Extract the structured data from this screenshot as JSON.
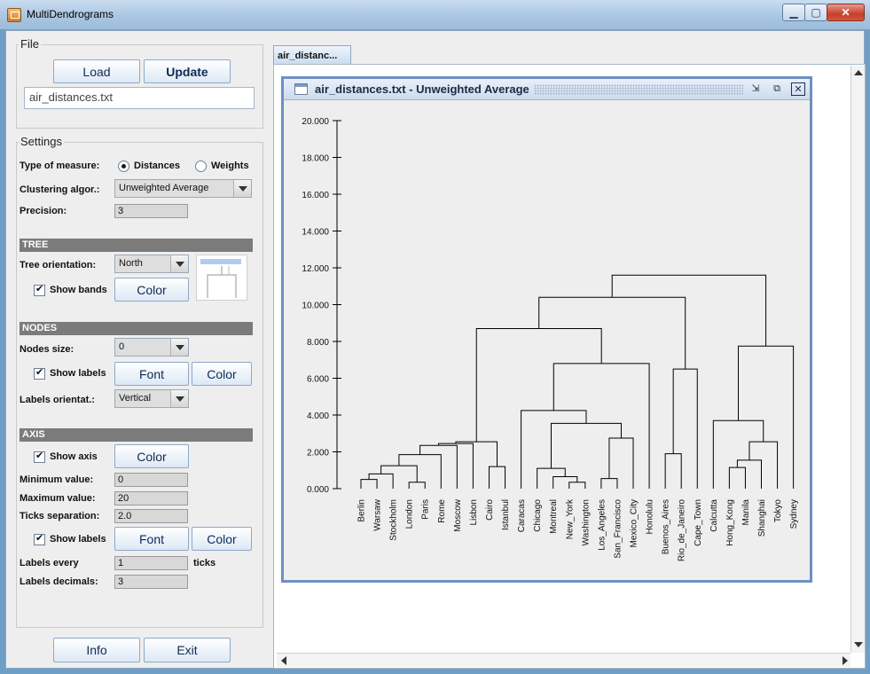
{
  "window": {
    "title": "MultiDendrograms"
  },
  "file": {
    "group_title": "File",
    "load_label": "Load",
    "update_label": "Update",
    "filename": "air_distances.txt"
  },
  "settings": {
    "group_title": "Settings",
    "measure_label": "Type of measure:",
    "distances_label": "Distances",
    "weights_label": "Weights",
    "measure_selected": "Distances",
    "algorithm_label": "Clustering algor.:",
    "algorithm_value": "Unweighted Average",
    "precision_label": "Precision:",
    "precision_value": "3"
  },
  "tree": {
    "header": "TREE",
    "orientation_label": "Tree orientation:",
    "orientation_value": "North",
    "show_bands_label": "Show bands",
    "show_bands": true,
    "color_label": "Color"
  },
  "nodes": {
    "header": "NODES",
    "size_label": "Nodes size:",
    "size_value": "0",
    "show_labels_label": "Show labels",
    "show_labels": true,
    "font_label": "Font",
    "color_label": "Color",
    "orient_label": "Labels orientat.:",
    "orient_value": "Vertical"
  },
  "axis": {
    "header": "AXIS",
    "show_axis_label": "Show axis",
    "show_axis": true,
    "color_label": "Color",
    "min_label": "Minimum value:",
    "min_value": "0",
    "max_label": "Maximum value:",
    "max_value": "20",
    "ticks_label": "Ticks separation:",
    "ticks_value": "2.0",
    "show_labels_label": "Show labels",
    "show_labels": true,
    "font_label": "Font",
    "color2_label": "Color",
    "every_label": "Labels every",
    "every_value": "1",
    "ticks_unit": "ticks",
    "decimals_label": "Labels decimals:",
    "decimals_value": "3"
  },
  "bottom": {
    "info_label": "Info",
    "exit_label": "Exit"
  },
  "tab": {
    "label": "air_distanc..."
  },
  "frame": {
    "title": "air_distances.txt - Unweighted Average"
  },
  "colors": {
    "band": "#aecdf0",
    "frame_border": "#6e8fc4"
  },
  "chart_data": {
    "type": "dendrogram",
    "orientation": "North",
    "ylim": [
      0,
      20
    ],
    "tick_step": 2,
    "tick_labels": [
      "0.000",
      "2.000",
      "4.000",
      "6.000",
      "8.000",
      "10.000",
      "12.000",
      "14.000",
      "16.000",
      "18.000",
      "20.000"
    ],
    "leaves": [
      "Berlin",
      "Warsaw",
      "Stockholm",
      "London",
      "Paris",
      "Rome",
      "Moscow",
      "Lisbon",
      "Cairo",
      "Istanbul",
      "Caracas",
      "Chicago",
      "Montreal",
      "New_York",
      "Washington",
      "Los_Angeles",
      "San_Francisco",
      "Mexico_City",
      "Honolulu",
      "Buenos_Aires",
      "Rio_de_Janeiro",
      "Cape_Town",
      "Calcutta",
      "Hong_Kong",
      "Manila",
      "Shanghai",
      "Tokyo",
      "Sydney"
    ],
    "merges": [
      {
        "a": "L0",
        "b": "L1",
        "height": 0.5
      },
      {
        "a": "C0",
        "b": "L2",
        "height": 0.8
      },
      {
        "a": "L3",
        "b": "L4",
        "height": 0.35
      },
      {
        "a": "C1",
        "b": "C2",
        "height": 1.25
      },
      {
        "a": "C3",
        "b": "L5",
        "height": 1.85
      },
      {
        "a": "C4",
        "b": "L6",
        "height": 2.35
      },
      {
        "a": "C5",
        "b": "L7",
        "height": 2.45
      },
      {
        "a": "L8",
        "b": "L9",
        "height": 1.2
      },
      {
        "a": "C6",
        "b": "C7",
        "height": 2.55
      },
      {
        "a": "L13",
        "b": "L14",
        "height": 0.35
      },
      {
        "a": "L12",
        "b": "C9",
        "height": 0.65
      },
      {
        "a": "L11",
        "b": "C10",
        "height": 1.1
      },
      {
        "a": "L15",
        "b": "L16",
        "height": 0.55
      },
      {
        "a": "C12",
        "b": "L17",
        "height": 2.75
      },
      {
        "a": "C11",
        "b": "C13",
        "height": 3.55
      },
      {
        "a": "L10",
        "b": "C14",
        "height": 4.25
      },
      {
        "a": "C15",
        "b": "L18",
        "height": 6.8
      },
      {
        "a": "C8",
        "b": "C16",
        "height": 8.7
      },
      {
        "a": "L19",
        "b": "L20",
        "height": 1.9
      },
      {
        "a": "C18",
        "b": "L21",
        "height": 6.5
      },
      {
        "a": "C17",
        "b": "C19",
        "height": 10.4
      },
      {
        "a": "L23",
        "b": "L24",
        "height": 1.15
      },
      {
        "a": "C21",
        "b": "L25",
        "height": 1.55
      },
      {
        "a": "C22",
        "b": "L26",
        "height": 2.55
      },
      {
        "a": "L22",
        "b": "C23",
        "height": 3.7
      },
      {
        "a": "C24",
        "b": "L27",
        "height": 7.75
      },
      {
        "a": "C20",
        "b": "C25",
        "height": 11.6
      }
    ]
  }
}
